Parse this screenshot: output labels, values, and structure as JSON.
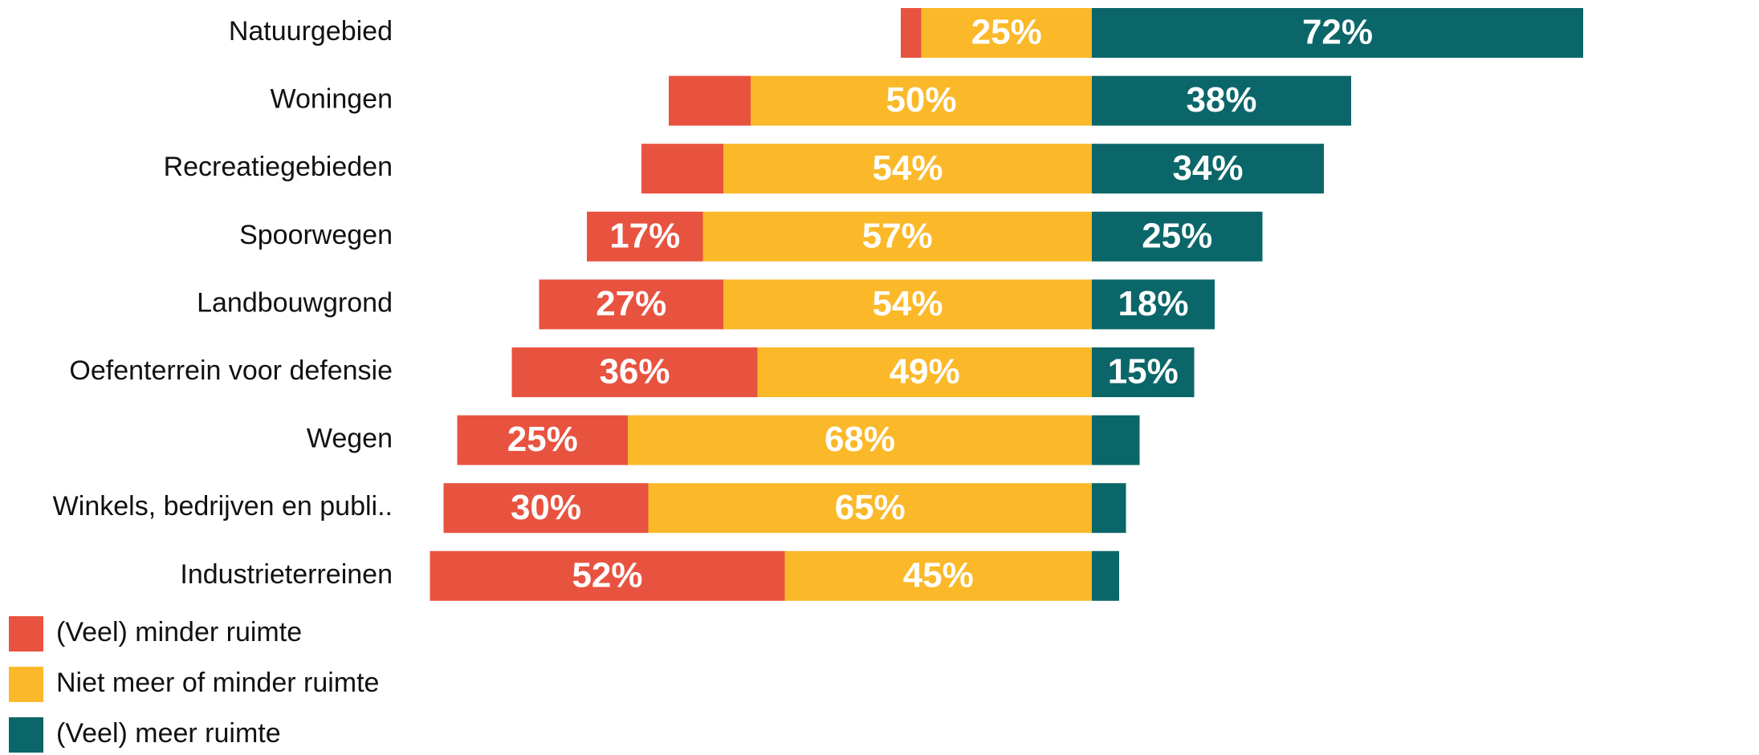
{
  "chart_data": {
    "type": "diverging-bar",
    "categories": [
      "Natuurgebied",
      "Woningen",
      "Recreatiegebieden",
      "Spoorwegen",
      "Landbouwgrond",
      "Oefenterrein voor defensie",
      "Wegen",
      "Winkels, bedrijven en publi..",
      "Industrieterreinen"
    ],
    "series": [
      {
        "name": "(Veel) minder ruimte",
        "color": "#e85340",
        "values": [
          3,
          12,
          12,
          17,
          27,
          36,
          25,
          30,
          52
        ],
        "value_labels": [
          null,
          null,
          null,
          "17%",
          "27%",
          "36%",
          "25%",
          "30%",
          "52%"
        ]
      },
      {
        "name": "Niet meer of minder ruimte",
        "color": "#fbb829",
        "values": [
          25,
          50,
          54,
          57,
          54,
          49,
          68,
          65,
          45
        ],
        "value_labels": [
          "25%",
          "50%",
          "54%",
          "57%",
          "54%",
          "49%",
          "68%",
          "65%",
          "45%"
        ]
      },
      {
        "name": "(Veel) meer ruimte",
        "color": "#0b6669",
        "values": [
          72,
          38,
          34,
          25,
          18,
          15,
          7,
          5,
          4
        ],
        "value_labels": [
          "72%",
          "38%",
          "34%",
          "25%",
          "18%",
          "15%",
          null,
          null,
          null
        ]
      }
    ]
  }
}
